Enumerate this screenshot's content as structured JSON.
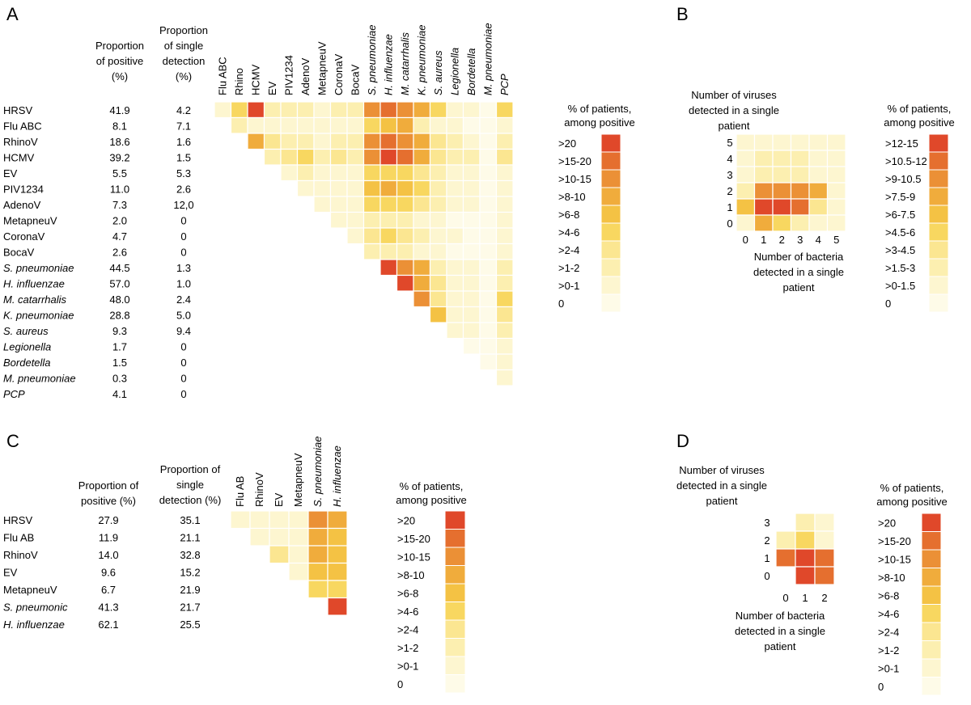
{
  "colors": {
    "scale": [
      "#fefbe8",
      "#fdf6d0",
      "#fcefb0",
      "#fbe691",
      "#f8d760",
      "#f4c244",
      "#f0ac3c",
      "#eb9036",
      "#e56f2f",
      "#e0482a"
    ],
    "empty": "#fdfaee"
  },
  "chart_data": [
    {
      "panel": "A",
      "type": "heatmap",
      "row_label_header": "",
      "col1_header": [
        "Proportion",
        "of positive",
        "(%)"
      ],
      "col2_header": [
        "Proportion",
        "of single",
        "detection",
        "(%)"
      ],
      "rows": [
        {
          "name": "HRSV",
          "italic": false,
          "positive": "41.9",
          "single": "4.2"
        },
        {
          "name": "Flu ABC",
          "italic": false,
          "positive": "8.1",
          "single": "7.1"
        },
        {
          "name": "RhinoV",
          "italic": false,
          "positive": "18.6",
          "single": "1.6"
        },
        {
          "name": "HCMV",
          "italic": false,
          "positive": "39.2",
          "single": "1.5"
        },
        {
          "name": "EV",
          "italic": false,
          "positive": "5.5",
          "single": "5.3"
        },
        {
          "name": "PIV1234",
          "italic": false,
          "positive": "11.0",
          "single": "2.6"
        },
        {
          "name": "AdenoV",
          "italic": false,
          "positive": "7.3",
          "single": "12,0"
        },
        {
          "name": "MetapneuV",
          "italic": false,
          "positive": "2.0",
          "single": "0"
        },
        {
          "name": "CoronaV",
          "italic": false,
          "positive": "4.7",
          "single": "0"
        },
        {
          "name": "BocaV",
          "italic": false,
          "positive": "2.6",
          "single": "0"
        },
        {
          "name": "S. pneumoniae",
          "italic": true,
          "positive": "44.5",
          "single": "1.3"
        },
        {
          "name": "H. influenzae",
          "italic": true,
          "positive": "57.0",
          "single": "1.0"
        },
        {
          "name": "M. catarrhalis",
          "italic": true,
          "positive": "48.0",
          "single": "2.4"
        },
        {
          "name": "K. pneumoniae",
          "italic": true,
          "positive": "28.8",
          "single": "5.0"
        },
        {
          "name": "S. aureus",
          "italic": true,
          "positive": "9.3",
          "single": "9.4"
        },
        {
          "name": "Legionella",
          "italic": true,
          "positive": "1.7",
          "single": "0"
        },
        {
          "name": "Bordetella",
          "italic": true,
          "positive": "1.5",
          "single": "0"
        },
        {
          "name": "M. pneumoniae",
          "italic": true,
          "positive": "0.3",
          "single": "0"
        },
        {
          "name": "PCP",
          "italic": true,
          "positive": "4.1",
          "single": "0"
        }
      ],
      "columns": [
        {
          "name": "Flu ABC",
          "italic": false
        },
        {
          "name": "Rhino",
          "italic": false
        },
        {
          "name": "HCMV",
          "italic": false
        },
        {
          "name": "EV",
          "italic": false
        },
        {
          "name": "PIV1234",
          "italic": false
        },
        {
          "name": "AdenoV",
          "italic": false
        },
        {
          "name": "MetapneuV",
          "italic": false
        },
        {
          "name": "CoronaV",
          "italic": false
        },
        {
          "name": "BocaV",
          "italic": false
        },
        {
          "name": "S. pneumoniae",
          "italic": true
        },
        {
          "name": "H. influenzae",
          "italic": true
        },
        {
          "name": "M. catarrhalis",
          "italic": true
        },
        {
          "name": "K. pneumoniae",
          "italic": true
        },
        {
          "name": "S. aureus",
          "italic": true
        },
        {
          "name": "Legionella",
          "italic": true
        },
        {
          "name": "Bordetella",
          "italic": true
        },
        {
          "name": "M. pneumoniae",
          "italic": true
        },
        {
          "name": "PCP",
          "italic": true
        }
      ],
      "matrix": [
        [
          1,
          4,
          9,
          2,
          2,
          2,
          1,
          2,
          2,
          7,
          8,
          7,
          6,
          4,
          1,
          1,
          0,
          4
        ],
        [
          null,
          2,
          1,
          1,
          1,
          1,
          1,
          1,
          1,
          4,
          5,
          6,
          2,
          1,
          1,
          0,
          0,
          1
        ],
        [
          null,
          null,
          6,
          3,
          2,
          2,
          1,
          2,
          2,
          7,
          8,
          7,
          6,
          3,
          2,
          1,
          0,
          2
        ],
        [
          null,
          null,
          null,
          2,
          3,
          4,
          2,
          3,
          2,
          7,
          9,
          8,
          6,
          3,
          2,
          2,
          0,
          3
        ],
        [
          null,
          null,
          null,
          null,
          1,
          2,
          1,
          1,
          1,
          4,
          4,
          4,
          3,
          2,
          1,
          1,
          0,
          1
        ],
        [
          null,
          null,
          null,
          null,
          null,
          1,
          1,
          1,
          1,
          5,
          6,
          5,
          4,
          2,
          1,
          1,
          0,
          1
        ],
        [
          null,
          null,
          null,
          null,
          null,
          null,
          1,
          1,
          1,
          4,
          4,
          4,
          3,
          2,
          1,
          1,
          0,
          1
        ],
        [
          null,
          null,
          null,
          null,
          null,
          null,
          null,
          1,
          1,
          2,
          2,
          2,
          1,
          1,
          0,
          0,
          0,
          1
        ],
        [
          null,
          null,
          null,
          null,
          null,
          null,
          null,
          null,
          1,
          3,
          4,
          3,
          2,
          1,
          1,
          0,
          0,
          1
        ],
        [
          null,
          null,
          null,
          null,
          null,
          null,
          null,
          null,
          null,
          2,
          2,
          2,
          1,
          1,
          0,
          0,
          0,
          1
        ],
        [
          null,
          null,
          null,
          null,
          null,
          null,
          null,
          null,
          null,
          null,
          9,
          7,
          6,
          2,
          1,
          1,
          0,
          2
        ],
        [
          null,
          null,
          null,
          null,
          null,
          null,
          null,
          null,
          null,
          null,
          null,
          9,
          6,
          3,
          1,
          1,
          0,
          2
        ],
        [
          null,
          null,
          null,
          null,
          null,
          null,
          null,
          null,
          null,
          null,
          null,
          null,
          7,
          3,
          1,
          1,
          0,
          4
        ],
        [
          null,
          null,
          null,
          null,
          null,
          null,
          null,
          null,
          null,
          null,
          null,
          null,
          null,
          5,
          1,
          1,
          0,
          3
        ],
        [
          null,
          null,
          null,
          null,
          null,
          null,
          null,
          null,
          null,
          null,
          null,
          null,
          null,
          null,
          1,
          1,
          0,
          2
        ],
        [
          null,
          null,
          null,
          null,
          null,
          null,
          null,
          null,
          null,
          null,
          null,
          null,
          null,
          null,
          null,
          0,
          0,
          1
        ],
        [
          null,
          null,
          null,
          null,
          null,
          null,
          null,
          null,
          null,
          null,
          null,
          null,
          null,
          null,
          null,
          null,
          0,
          1
        ],
        [
          null,
          null,
          null,
          null,
          null,
          null,
          null,
          null,
          null,
          null,
          null,
          null,
          null,
          null,
          null,
          null,
          null,
          1
        ],
        [
          null,
          null,
          null,
          null,
          null,
          null,
          null,
          null,
          null,
          null,
          null,
          null,
          null,
          null,
          null,
          null,
          null,
          null
        ]
      ],
      "legend_title": [
        "% of patients,",
        "among positive"
      ],
      "legend": [
        ">20",
        ">15-20",
        ">10-15",
        ">8-10",
        ">6-8",
        ">4-6",
        ">2-4",
        ">1-2",
        ">0-1",
        "0"
      ]
    },
    {
      "panel": "B",
      "type": "heatmap",
      "ylabel": [
        "Number of viruses",
        "detected in a single",
        "patient"
      ],
      "xlabel": [
        "Number of bacteria",
        "detected in a single",
        "patient"
      ],
      "x": [
        "0",
        "1",
        "2",
        "3",
        "4",
        "5"
      ],
      "y": [
        "5",
        "4",
        "3",
        "2",
        "1",
        "0"
      ],
      "matrix": [
        [
          1,
          1,
          1,
          1,
          1,
          1
        ],
        [
          1,
          2,
          2,
          2,
          1,
          1
        ],
        [
          1,
          2,
          2,
          2,
          1,
          1
        ],
        [
          2,
          7,
          7,
          7,
          6,
          1
        ],
        [
          5,
          9,
          9,
          8,
          3,
          1
        ],
        [
          1,
          6,
          4,
          2,
          1,
          1
        ]
      ],
      "legend_title": [
        "% of patients,",
        "among positive"
      ],
      "legend": [
        ">12-15",
        ">10.5-12",
        ">9-10.5",
        ">7.5-9",
        ">6-7.5",
        ">4.5-6",
        ">3-4.5",
        ">1.5-3",
        ">0-1.5",
        "0"
      ]
    },
    {
      "panel": "C",
      "type": "heatmap",
      "col1_header": [
        "Proportion of",
        "positive (%)"
      ],
      "col2_header": [
        "Proportion of",
        "single",
        "detection (%)"
      ],
      "rows": [
        {
          "name": "HRSV",
          "italic": false,
          "positive": "27.9",
          "single": "35.1"
        },
        {
          "name": "Flu AB",
          "italic": false,
          "positive": "11.9",
          "single": "21.1"
        },
        {
          "name": "RhinoV",
          "italic": false,
          "positive": "14.0",
          "single": "32.8"
        },
        {
          "name": "EV",
          "italic": false,
          "positive": "9.6",
          "single": "15.2"
        },
        {
          "name": "MetapneuV",
          "italic": false,
          "positive": "6.7",
          "single": "21.9"
        },
        {
          "name": "S. pneumonic",
          "italic": true,
          "positive": "41.3",
          "single": "21.7"
        },
        {
          "name": "H. influenzae",
          "italic": true,
          "positive": "62.1",
          "single": "25.5"
        }
      ],
      "columns": [
        {
          "name": "Flu AB",
          "italic": false
        },
        {
          "name": "RhinoV",
          "italic": false
        },
        {
          "name": "EV",
          "italic": false
        },
        {
          "name": "MetapneuV",
          "italic": false
        },
        {
          "name": "S. pneumoniae",
          "italic": true
        },
        {
          "name": "H. influenzae",
          "italic": true
        }
      ],
      "matrix": [
        [
          1,
          1,
          1,
          1,
          7,
          6
        ],
        [
          null,
          1,
          1,
          1,
          6,
          5
        ],
        [
          null,
          null,
          3,
          1,
          6,
          5
        ],
        [
          null,
          null,
          null,
          1,
          5,
          5
        ],
        [
          null,
          null,
          null,
          null,
          4,
          4
        ],
        [
          null,
          null,
          null,
          null,
          null,
          9
        ],
        [
          null,
          null,
          null,
          null,
          null,
          null
        ]
      ],
      "legend_title": [
        "% of patients,",
        "among positive"
      ],
      "legend": [
        ">20",
        ">15-20",
        ">10-15",
        ">8-10",
        ">6-8",
        ">4-6",
        ">2-4",
        ">1-2",
        ">0-1",
        "0"
      ]
    },
    {
      "panel": "D",
      "type": "heatmap",
      "ylabel": [
        "Number of viruses",
        "detected in a single",
        "patient"
      ],
      "xlabel": [
        "Number of bacteria",
        "detected in a single",
        "patient"
      ],
      "x": [
        "0",
        "1",
        "2"
      ],
      "y": [
        "3",
        "2",
        "1",
        "0"
      ],
      "matrix": [
        [
          null,
          2,
          1
        ],
        [
          2,
          4,
          1
        ],
        [
          8,
          9,
          8
        ],
        [
          null,
          9,
          8
        ]
      ],
      "legend_title": [
        "% of patients,",
        "among positive"
      ],
      "legend": [
        ">20",
        ">15-20",
        ">10-15",
        ">8-10",
        ">6-8",
        ">4-6",
        ">2-4",
        ">1-2",
        ">0-1",
        "0"
      ]
    }
  ]
}
